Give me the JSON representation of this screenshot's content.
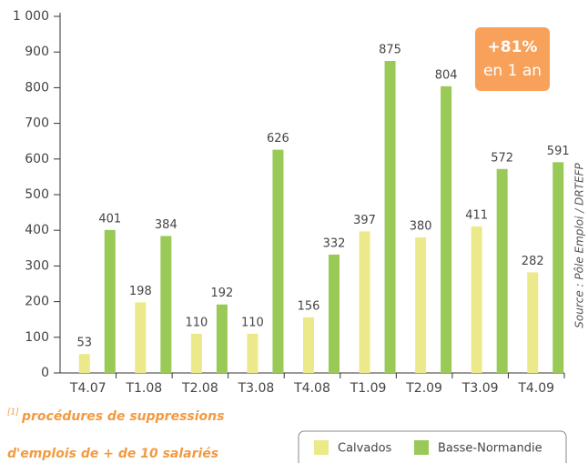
{
  "chart_data": {
    "type": "bar",
    "categories": [
      "T4.07",
      "T1.08",
      "T2.08",
      "T3.08",
      "T4.08",
      "T1.09",
      "T2.09",
      "T3.09",
      "T4.09"
    ],
    "series": [
      {
        "name": "Calvados",
        "color": "#ebe98a",
        "values": [
          53,
          198,
          110,
          110,
          156,
          397,
          380,
          411,
          282
        ]
      },
      {
        "name": "Basse-Normandie",
        "color": "#99c957",
        "values": [
          401,
          384,
          192,
          626,
          332,
          875,
          804,
          572,
          591
        ]
      }
    ],
    "ylim": [
      0,
      1000
    ],
    "yticks": [
      0,
      100,
      200,
      300,
      400,
      500,
      600,
      700,
      800,
      900,
      {
        "value": 1000,
        "label": "1 000"
      }
    ],
    "grid": false,
    "badge": [
      "+81%",
      "en 1 an"
    ],
    "source": "Source : Pôle Emploi / DRTEFP",
    "note_marker": "[1]",
    "note": [
      "procédures de suppressions",
      "d'emplois de + de 10 salariés"
    ]
  }
}
